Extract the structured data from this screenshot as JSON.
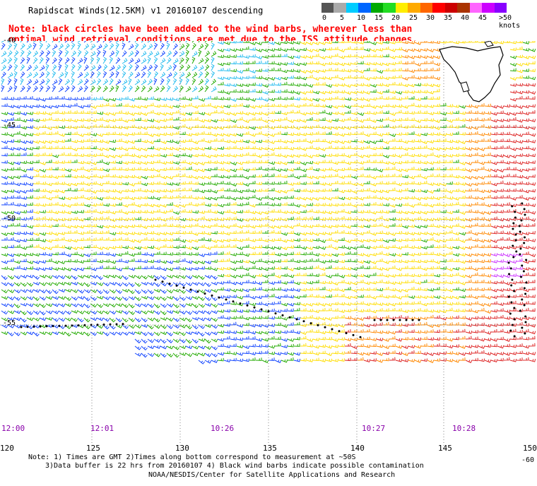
{
  "title": "Rapidscat Winds(12.5KM) v1 20160107 descending",
  "note_line1": "Note: black circles have been added to the wind barbs, wherever less than",
  "note_line2": "optimal wind retrieval conditions are met due to the ISS attitude changes.",
  "colorbar": {
    "labels": [
      "0",
      "5",
      "10",
      "15",
      "20",
      "25",
      "30",
      "35",
      "40",
      "45",
      ">50 knots"
    ],
    "colors": [
      "#555555",
      "#aaaaaa",
      "#00ccff",
      "#0066ff",
      "#00aa00",
      "#22dd22",
      "#ffee00",
      "#ffaa00",
      "#ff6600",
      "#ff0000",
      "#cc0000",
      "#aa3300",
      "#ff66ff",
      "#cc00ff",
      "#8800ff"
    ]
  },
  "axes": {
    "lon_labels": [
      "120",
      "125",
      "130",
      "135",
      "140",
      "145",
      "150"
    ],
    "lat_labels": [
      "-40",
      "-45",
      "-50",
      "-55",
      "-60"
    ]
  },
  "time_labels": [
    "12:00",
    "12:01",
    "10:26",
    "10:27",
    "10:28"
  ],
  "footnote_line1": "Note: 1) Times are GMT 2)Times along bottom correspond to measurement at ~50S",
  "footnote_line2": "3)Data buffer is 22 hrs from 20160107 4) Black wind barbs indicate possible contamination",
  "credit": "NOAA/NESDIS/Center for Satellite Applications and Research",
  "wind_colors": {
    "blue": "#1144ff",
    "cyan": "#22bbee",
    "green": "#22aa00",
    "yellow": "#ffdd00",
    "orange": "#ff8800",
    "red": "#dd2222",
    "magenta": "#cc33ff",
    "land": "#ffffff",
    "coast": "#000000"
  }
}
